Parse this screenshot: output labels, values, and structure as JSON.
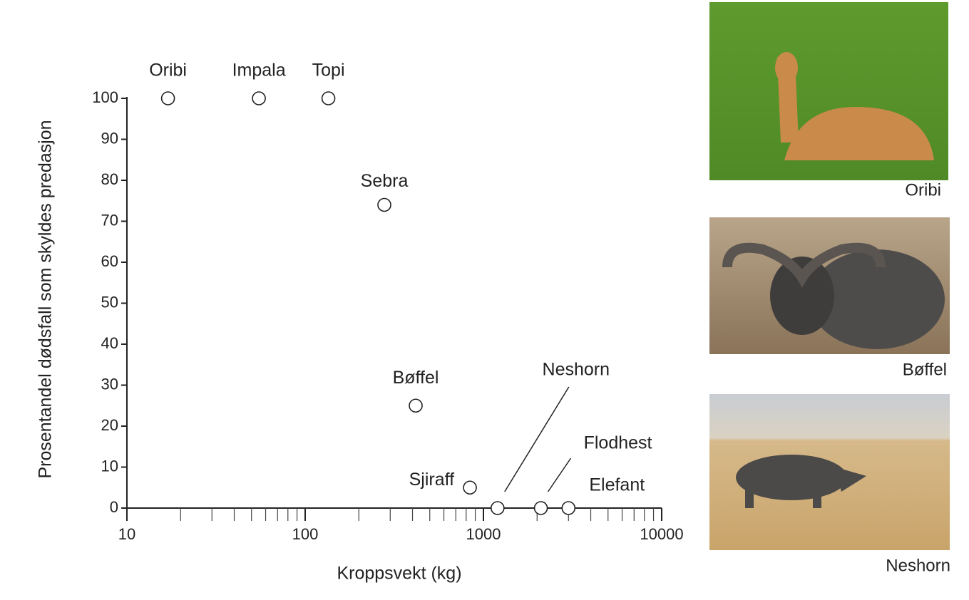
{
  "chart_data": {
    "type": "scatter",
    "x_label": "Kroppsvekt (kg)",
    "y_label": "Prosentandel dødsfall som skyldes predasjon",
    "x": [
      17,
      55,
      135,
      278,
      417,
      840,
      1200,
      2100,
      3000
    ],
    "values": [
      100,
      100,
      100,
      74,
      25,
      5,
      0,
      0,
      0
    ],
    "point_labels": [
      "Oribi",
      "Impala",
      "Topi",
      "Sebra",
      "Bøffel",
      "Sjiraff",
      "Neshorn",
      "Flodhest",
      "Elefant"
    ],
    "color": "#222222",
    "xlim": [
      10,
      10000
    ],
    "xticks": [
      10,
      100,
      1000,
      10000
    ],
    "xminorticks": [
      20,
      30,
      40,
      50,
      60,
      70,
      80,
      90,
      200,
      300,
      400,
      500,
      600,
      700,
      800,
      900,
      2000,
      3000,
      4000,
      5000,
      6000,
      7000,
      8000,
      9000
    ],
    "xscale": "log",
    "ylim": [
      0,
      100
    ],
    "yticks": [
      0,
      10,
      20,
      30,
      40,
      50,
      60,
      70,
      80,
      90,
      100
    ]
  },
  "photos": [
    {
      "caption": "Oribi"
    },
    {
      "caption": "Bøffel"
    },
    {
      "caption": "Neshorn"
    }
  ]
}
